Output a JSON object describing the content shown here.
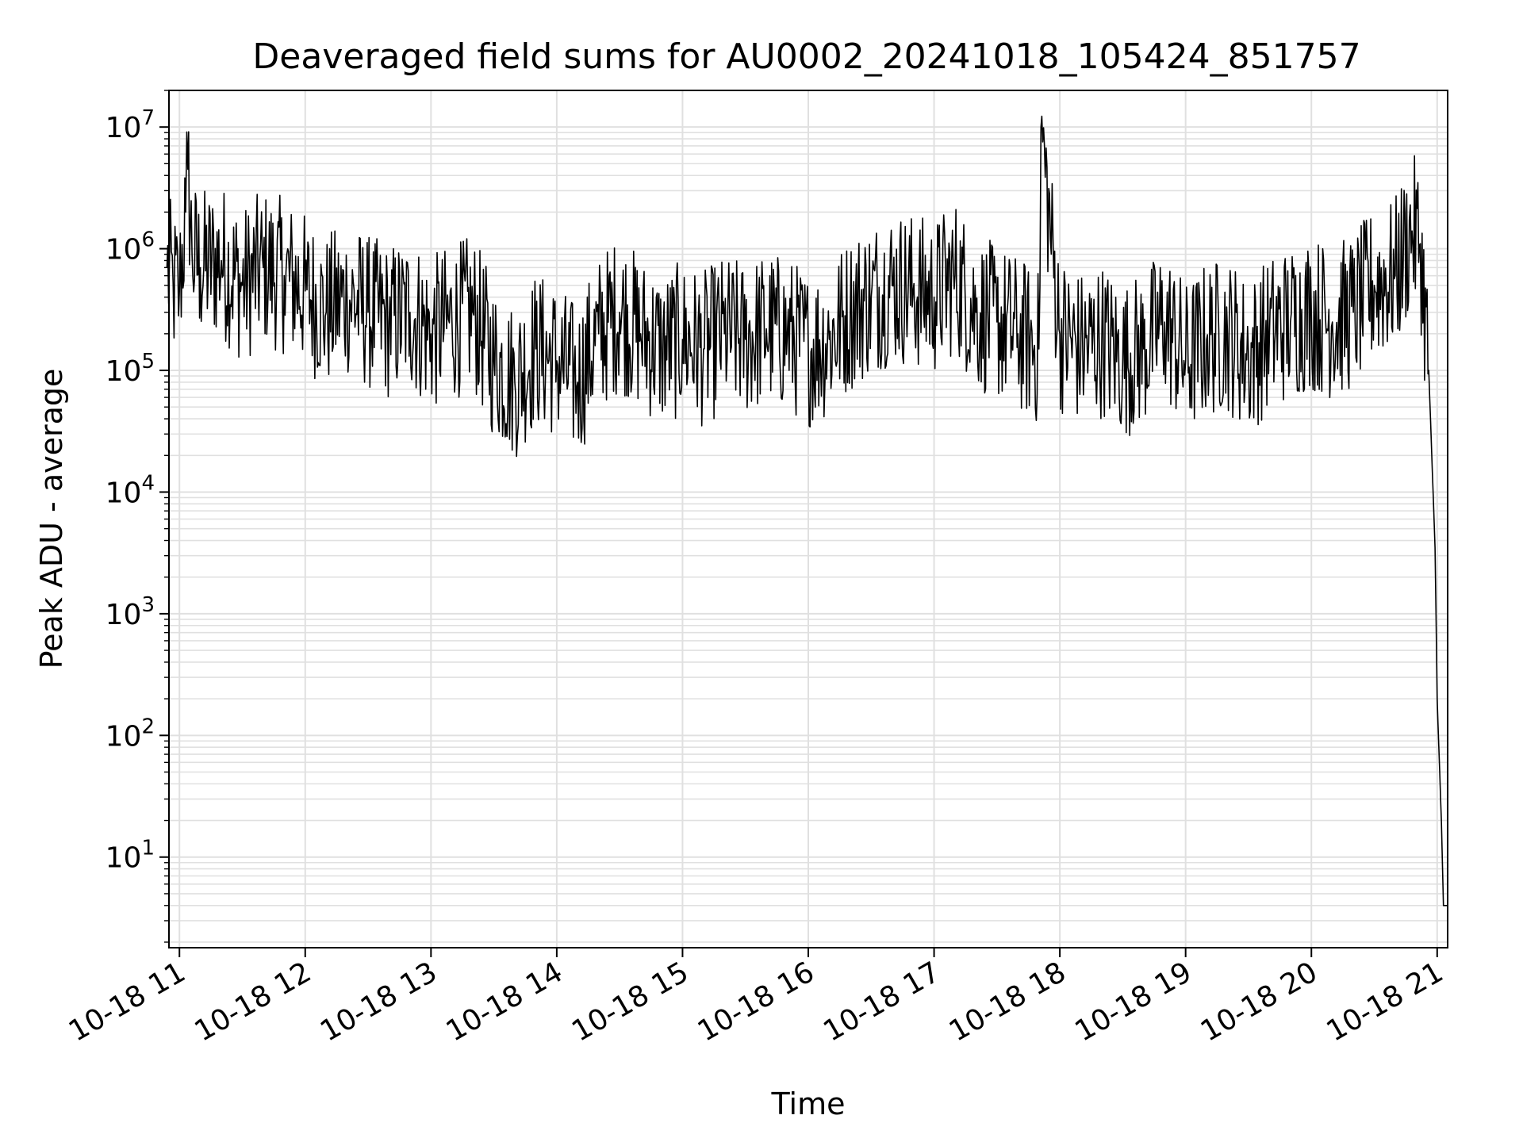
{
  "chart_data": {
    "type": "line",
    "title": "Deaveraged field sums for AU0002_20241018_105424_851757",
    "xlabel": "Time",
    "ylabel": "Peak ADU - average",
    "xscale": "time",
    "yscale": "log",
    "xlim": [
      "2024-10-18T10:55",
      "2024-10-18T21:05"
    ],
    "ylim": [
      1.8,
      20000000
    ],
    "grid": true,
    "line_color": "#000000",
    "grid_color": "#e0e0e0",
    "x_ticks": [
      "10-18 11",
      "10-18 12",
      "10-18 13",
      "10-18 14",
      "10-18 15",
      "10-18 16",
      "10-18 17",
      "10-18 18",
      "10-18 19",
      "10-18 20",
      "10-18 21"
    ],
    "y_ticks": [
      {
        "base": "10",
        "exp": "1",
        "value": 10
      },
      {
        "base": "10",
        "exp": "2",
        "value": 100
      },
      {
        "base": "10",
        "exp": "3",
        "value": 1000
      },
      {
        "base": "10",
        "exp": "4",
        "value": 10000
      },
      {
        "base": "10",
        "exp": "5",
        "value": 100000
      },
      {
        "base": "10",
        "exp": "6",
        "value": 1000000
      },
      {
        "base": "10",
        "exp": "7",
        "value": 10000000
      }
    ],
    "series": [
      {
        "x": [
          "2024-10-18T10:54",
          "2024-10-18T10:57",
          "2024-10-18T11:00",
          "2024-10-18T11:03",
          "2024-10-18T11:04",
          "2024-10-18T11:06",
          "2024-10-18T11:10",
          "2024-10-18T11:20",
          "2024-10-18T11:30",
          "2024-10-18T11:40",
          "2024-10-18T11:50",
          "2024-10-18T12:00",
          "2024-10-18T12:10",
          "2024-10-18T12:20",
          "2024-10-18T12:30",
          "2024-10-18T12:40",
          "2024-10-18T12:50",
          "2024-10-18T13:00",
          "2024-10-18T13:10",
          "2024-10-18T13:20",
          "2024-10-18T13:30",
          "2024-10-18T13:40",
          "2024-10-18T13:50",
          "2024-10-18T14:00",
          "2024-10-18T14:10",
          "2024-10-18T14:20",
          "2024-10-18T14:30",
          "2024-10-18T14:40",
          "2024-10-18T14:50",
          "2024-10-18T15:00",
          "2024-10-18T15:10",
          "2024-10-18T15:20",
          "2024-10-18T15:30",
          "2024-10-18T15:40",
          "2024-10-18T15:50",
          "2024-10-18T16:00",
          "2024-10-18T16:10",
          "2024-10-18T16:20",
          "2024-10-18T16:30",
          "2024-10-18T16:40",
          "2024-10-18T16:50",
          "2024-10-18T17:00",
          "2024-10-18T17:10",
          "2024-10-18T17:20",
          "2024-10-18T17:30",
          "2024-10-18T17:40",
          "2024-10-18T17:50",
          "2024-10-18T17:51",
          "2024-10-18T18:00",
          "2024-10-18T18:10",
          "2024-10-18T18:20",
          "2024-10-18T18:30",
          "2024-10-18T18:40",
          "2024-10-18T18:50",
          "2024-10-18T19:00",
          "2024-10-18T19:10",
          "2024-10-18T19:20",
          "2024-10-18T19:30",
          "2024-10-18T19:40",
          "2024-10-18T19:50",
          "2024-10-18T20:00",
          "2024-10-18T20:10",
          "2024-10-18T20:20",
          "2024-10-18T20:30",
          "2024-10-18T20:40",
          "2024-10-18T20:48",
          "2024-10-18T20:52",
          "2024-10-18T20:56",
          "2024-10-18T20:59",
          "2024-10-18T21:00",
          "2024-10-18T21:02",
          "2024-10-18T21:03",
          "2024-10-18T21:05"
        ],
        "y": [
          700000,
          500000,
          450000,
          2000000,
          4500000,
          900000,
          700000,
          800000,
          500000,
          700000,
          600000,
          450000,
          300000,
          400000,
          300000,
          250000,
          300000,
          200000,
          250000,
          300000,
          120000,
          80000,
          150000,
          120000,
          80000,
          200000,
          300000,
          200000,
          150000,
          180000,
          150000,
          200000,
          180000,
          220000,
          200000,
          150000,
          180000,
          300000,
          400000,
          500000,
          450000,
          400000,
          600000,
          300000,
          250000,
          200000,
          150000,
          10000000,
          200000,
          150000,
          180000,
          120000,
          150000,
          250000,
          120000,
          180000,
          200000,
          130000,
          200000,
          250000,
          300000,
          250000,
          300000,
          500000,
          600000,
          1400000,
          1100000,
          100000,
          3500,
          200,
          20,
          4,
          4
        ]
      }
    ]
  }
}
